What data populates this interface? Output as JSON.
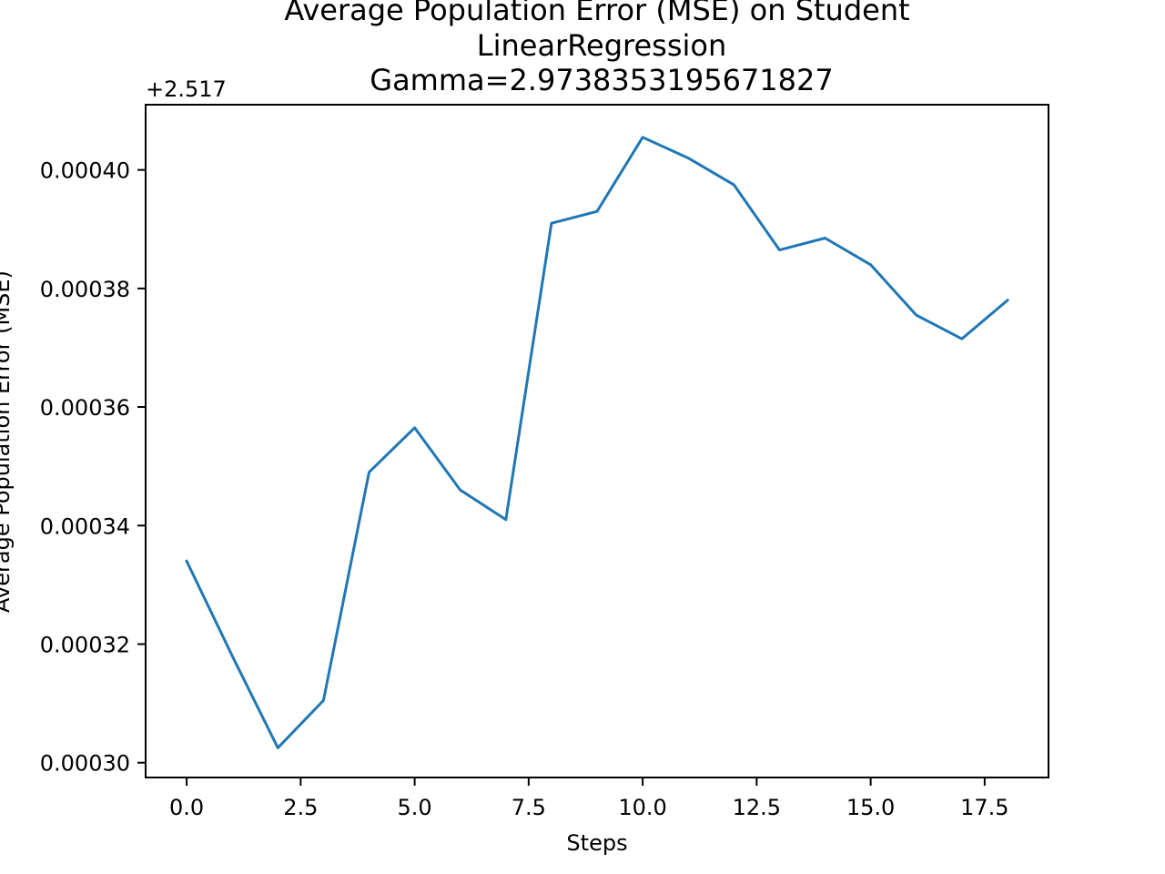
{
  "chart_data": {
    "type": "line",
    "title_lines": [
      "Average Population Error (MSE) on Student",
      "LinearRegression",
      "Gamma=2.9738353195671827"
    ],
    "xlabel": "Steps",
    "ylabel": "Average Population Error (MSE)",
    "y_offset_label": "+2.517",
    "y_offset": 2.517,
    "x_ticks": [
      0.0,
      2.5,
      5.0,
      7.5,
      10.0,
      12.5,
      15.0,
      17.5
    ],
    "x_tick_labels": [
      "0.0",
      "2.5",
      "5.0",
      "7.5",
      "10.0",
      "12.5",
      "15.0",
      "17.5"
    ],
    "y_ticks": [
      0.0003,
      0.00032,
      0.00034,
      0.00036,
      0.00038,
      0.0004
    ],
    "y_tick_labels": [
      "0.00030",
      "0.00032",
      "0.00034",
      "0.00036",
      "0.00038",
      "0.00040"
    ],
    "xlim": [
      -0.9,
      18.9
    ],
    "ylim": [
      0.0002975,
      0.000411
    ],
    "grid": false,
    "series": [
      {
        "color": "#1f77b4",
        "x": [
          0,
          1,
          2,
          3,
          4,
          5,
          6,
          7,
          8,
          9,
          10,
          11,
          12,
          13,
          14,
          15,
          16,
          17,
          18
        ],
        "y": [
          0.000334,
          0.000318,
          0.0003025,
          0.0003105,
          0.000349,
          0.0003565,
          0.000346,
          0.000341,
          0.000391,
          0.000393,
          0.0004055,
          0.000402,
          0.0003975,
          0.0003865,
          0.0003885,
          0.000384,
          0.0003755,
          0.0003715,
          0.000378
        ]
      }
    ]
  }
}
